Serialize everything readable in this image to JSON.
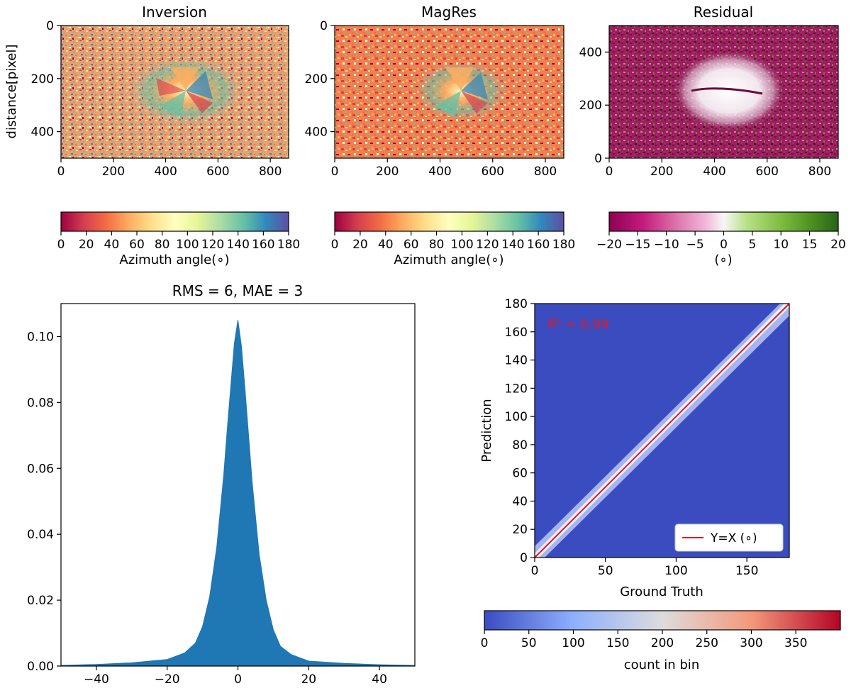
{
  "chart_data": [
    {
      "type": "heatmap",
      "title": "Inversion",
      "ylabel": "distance[pixel]",
      "xlim": [
        0,
        870
      ],
      "ylim": [
        500,
        0
      ],
      "xticks": [
        "0",
        "200",
        "400",
        "600",
        "800"
      ],
      "yticks": [
        "0",
        "200",
        "400"
      ],
      "colormap": "Spectral",
      "colorbar": {
        "label": "Azimuth angle(∘)",
        "range": [
          0,
          180
        ],
        "ticks": [
          "0",
          "20",
          "40",
          "60",
          "80",
          "100",
          "120",
          "140",
          "160",
          "180"
        ]
      }
    },
    {
      "type": "heatmap",
      "title": "MagRes",
      "xlim": [
        0,
        870
      ],
      "ylim": [
        500,
        0
      ],
      "xticks": [
        "0",
        "200",
        "400",
        "600",
        "800"
      ],
      "yticks": [
        "0",
        "200",
        "400"
      ],
      "colormap": "Spectral",
      "colorbar": {
        "label": "Azimuth angle(∘)",
        "range": [
          0,
          180
        ],
        "ticks": [
          "0",
          "20",
          "40",
          "60",
          "80",
          "100",
          "120",
          "140",
          "160",
          "180"
        ]
      }
    },
    {
      "type": "heatmap",
      "title": "Residual",
      "xlim": [
        0,
        870
      ],
      "ylim": [
        0,
        500
      ],
      "xticks": [
        "0",
        "200",
        "400",
        "600",
        "800"
      ],
      "yticks": [
        "0",
        "200",
        "400"
      ],
      "colormap": "PiYG",
      "colorbar": {
        "label": "(∘)",
        "range": [
          -20,
          20
        ],
        "ticks": [
          "−20",
          "−15",
          "−10",
          "−5",
          "0",
          "5",
          "10",
          "15",
          "20"
        ]
      }
    },
    {
      "type": "area",
      "title": "RMS = 6, MAE = 3",
      "xlim": [
        -50,
        50
      ],
      "ylim": [
        0,
        0.11
      ],
      "xticks": [
        "−40",
        "−20",
        "0",
        "20",
        "40"
      ],
      "yticks": [
        "0.00",
        "0.02",
        "0.04",
        "0.06",
        "0.08",
        "0.10"
      ],
      "x": [
        -50,
        -40,
        -30,
        -20,
        -15,
        -12,
        -10,
        -8,
        -6,
        -4,
        -3,
        -2,
        -1,
        0,
        1,
        2,
        3,
        4,
        6,
        8,
        10,
        12,
        15,
        20,
        30,
        40,
        50
      ],
      "y": [
        0.0002,
        0.0005,
        0.001,
        0.002,
        0.004,
        0.007,
        0.012,
        0.021,
        0.036,
        0.058,
        0.072,
        0.085,
        0.098,
        0.105,
        0.097,
        0.084,
        0.07,
        0.056,
        0.034,
        0.02,
        0.011,
        0.006,
        0.0035,
        0.0015,
        0.0008,
        0.0004,
        0.0002
      ],
      "color": "#1f77b4"
    },
    {
      "type": "heatmap",
      "xlabel": "Ground Truth",
      "ylabel": "Prediction",
      "xlim": [
        0,
        180
      ],
      "ylim": [
        0,
        180
      ],
      "xticks": [
        "0",
        "50",
        "100",
        "150"
      ],
      "yticks": [
        "0",
        "20",
        "40",
        "60",
        "80",
        "100",
        "120",
        "140",
        "160",
        "180"
      ],
      "annotation": "R² = 0.99",
      "legend": {
        "label": "Y=X (∘)",
        "position": "lower-right"
      },
      "line": {
        "x": [
          0,
          180
        ],
        "y": [
          0,
          180
        ],
        "color": "#e31a1c"
      },
      "colormap": "coolwarm",
      "colorbar": {
        "label": "count in bin",
        "range": [
          0,
          400
        ],
        "ticks": [
          "0",
          "50",
          "100",
          "150",
          "200",
          "250",
          "300",
          "350"
        ]
      }
    }
  ]
}
